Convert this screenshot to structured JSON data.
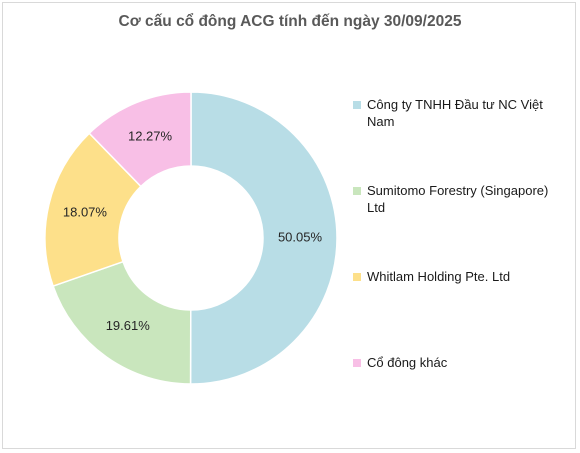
{
  "chart_data": {
    "type": "pie",
    "title": "Cơ cấu cổ đông ACG tính đến ngày 30/09/2025",
    "categories": [
      "Công ty TNHH Đầu tư NC Việt Nam",
      "Sumitomo Forestry (Singapore) Ltd",
      "Whitlam Holding Pte. Ltd",
      "Cổ đông khác"
    ],
    "values": [
      50.05,
      19.61,
      18.07,
      12.27
    ],
    "data_labels": [
      "50.05%",
      "19.61%",
      "18.07%",
      "12.27%"
    ],
    "colors": [
      "#b8dde6",
      "#c9e6bd",
      "#fde08a",
      "#f8bfe6"
    ],
    "legend": "right",
    "donut": true
  }
}
